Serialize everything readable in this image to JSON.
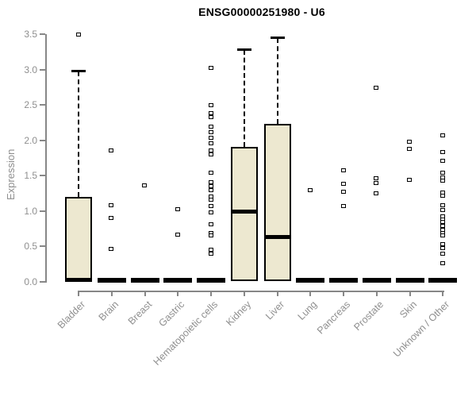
{
  "title": "ENSG00000251980 - U6",
  "y_axis": {
    "label": "Expression",
    "tick_labels": [
      "0.0",
      "0.5",
      "1.0",
      "1.5",
      "2.0",
      "2.5",
      "3.0",
      "3.5"
    ],
    "tick_values": [
      0,
      0.5,
      1,
      1.5,
      2,
      2.5,
      3,
      3.5
    ]
  },
  "colors": {
    "box_fill": "#EDE8D0",
    "box_border": "#000000",
    "axis_gray": "#878787",
    "label_gray": "#8f8f8f",
    "title_color": "#000000"
  },
  "chart_data": {
    "type": "boxplot",
    "title": "ENSG00000251980 - U6",
    "xlabel": "",
    "ylabel": "Expression",
    "ylim": [
      0,
      3.5
    ],
    "grid": false,
    "categories": [
      "Bladder",
      "Brain",
      "Breast",
      "Gastric",
      "Hematopoietic cells",
      "Kidney",
      "Liver",
      "Lung",
      "Pancreas",
      "Prostate",
      "Skin",
      "Unknown / Other"
    ],
    "boxes": [
      {
        "category": "Bladder",
        "whisker_low": 0,
        "q1": 0,
        "median": 0.02,
        "q3": 1.2,
        "whisker_high": 2.97,
        "outliers": [
          3.49
        ]
      },
      {
        "category": "Brain",
        "whisker_low": 0,
        "q1": 0,
        "median": 0.02,
        "q3": 0.02,
        "whisker_high": 0.02,
        "outliers": [
          1.85,
          1.07,
          0.89,
          0.46
        ]
      },
      {
        "category": "Breast",
        "whisker_low": 0,
        "q1": 0,
        "median": 0.02,
        "q3": 0.02,
        "whisker_high": 0.02,
        "outliers": [
          1.35
        ]
      },
      {
        "category": "Gastric",
        "whisker_low": 0,
        "q1": 0,
        "median": 0.02,
        "q3": 0.02,
        "whisker_high": 0.02,
        "outliers": [
          1.02,
          0.66
        ]
      },
      {
        "category": "Hematopoietic cells",
        "whisker_low": 0,
        "q1": 0,
        "median": 0.02,
        "q3": 0.02,
        "whisker_high": 0.02,
        "outliers": [
          3.02,
          2.49,
          2.38,
          2.32,
          2.19,
          2.11,
          2.03,
          1.95,
          1.85,
          1.79,
          1.53,
          1.4,
          1.34,
          1.29,
          1.2,
          1.15,
          1.06,
          0.97,
          0.8,
          0.68,
          0.65,
          0.44,
          0.39
        ]
      },
      {
        "category": "Kidney",
        "whisker_low": 0,
        "q1": 0,
        "median": 0.99,
        "q3": 1.91,
        "whisker_high": 3.27,
        "outliers": []
      },
      {
        "category": "Liver",
        "whisker_low": 0,
        "q1": 0,
        "median": 0.63,
        "q3": 2.23,
        "whisker_high": 3.44,
        "outliers": []
      },
      {
        "category": "Lung",
        "whisker_low": 0,
        "q1": 0,
        "median": 0.02,
        "q3": 0.02,
        "whisker_high": 0.02,
        "outliers": [
          1.29
        ]
      },
      {
        "category": "Pancreas",
        "whisker_low": 0,
        "q1": 0,
        "median": 0.02,
        "q3": 0.02,
        "whisker_high": 0.02,
        "outliers": [
          1.57,
          1.38,
          1.26,
          1.06
        ]
      },
      {
        "category": "Prostate",
        "whisker_low": 0,
        "q1": 0,
        "median": 0.02,
        "q3": 0.02,
        "whisker_high": 0.02,
        "outliers": [
          2.74,
          1.46,
          1.39,
          1.24
        ]
      },
      {
        "category": "Skin",
        "whisker_low": 0,
        "q1": 0,
        "median": 0.02,
        "q3": 0.02,
        "whisker_high": 0.02,
        "outliers": [
          1.97,
          1.87,
          1.43
        ]
      },
      {
        "category": "Unknown / Other",
        "whisker_low": 0,
        "q1": 0,
        "median": 0.02,
        "q3": 0.02,
        "whisker_high": 0.02,
        "outliers": [
          2.06,
          1.83,
          1.7,
          1.53,
          1.47,
          1.42,
          1.25,
          1.21,
          1.07,
          1.01,
          0.92,
          0.87,
          0.84,
          0.78,
          0.72,
          0.68,
          0.65,
          0.52,
          0.47,
          0.39,
          0.25
        ]
      }
    ]
  }
}
